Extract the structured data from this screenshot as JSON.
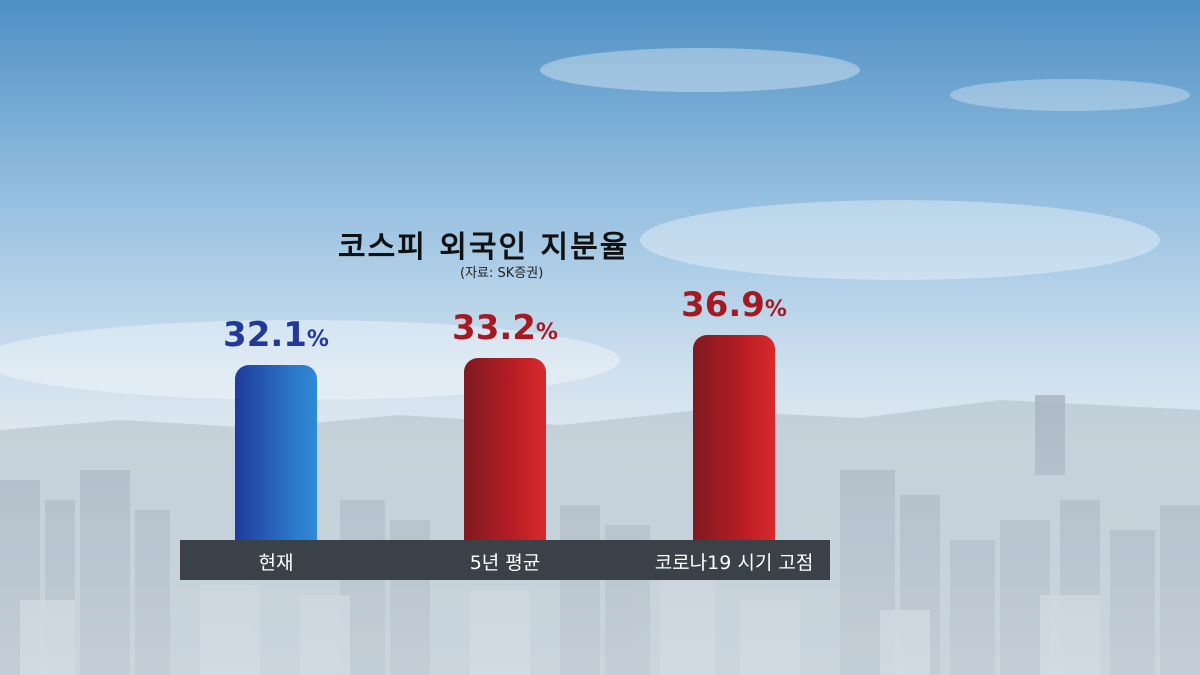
{
  "chart_data": {
    "type": "bar",
    "title": "코스피 외국인 지분율",
    "source": "(자료: SK증권)",
    "categories": [
      "현재",
      "5년 평균",
      "코로나19 시기 고점"
    ],
    "values": [
      32.1,
      33.2,
      36.9
    ],
    "value_labels": [
      "32.1",
      "33.2",
      "36.9"
    ],
    "unit": "%",
    "colors": [
      "#2c6fc4",
      "#b71d24",
      "#c41f26"
    ],
    "ylim": [
      0,
      40
    ]
  }
}
